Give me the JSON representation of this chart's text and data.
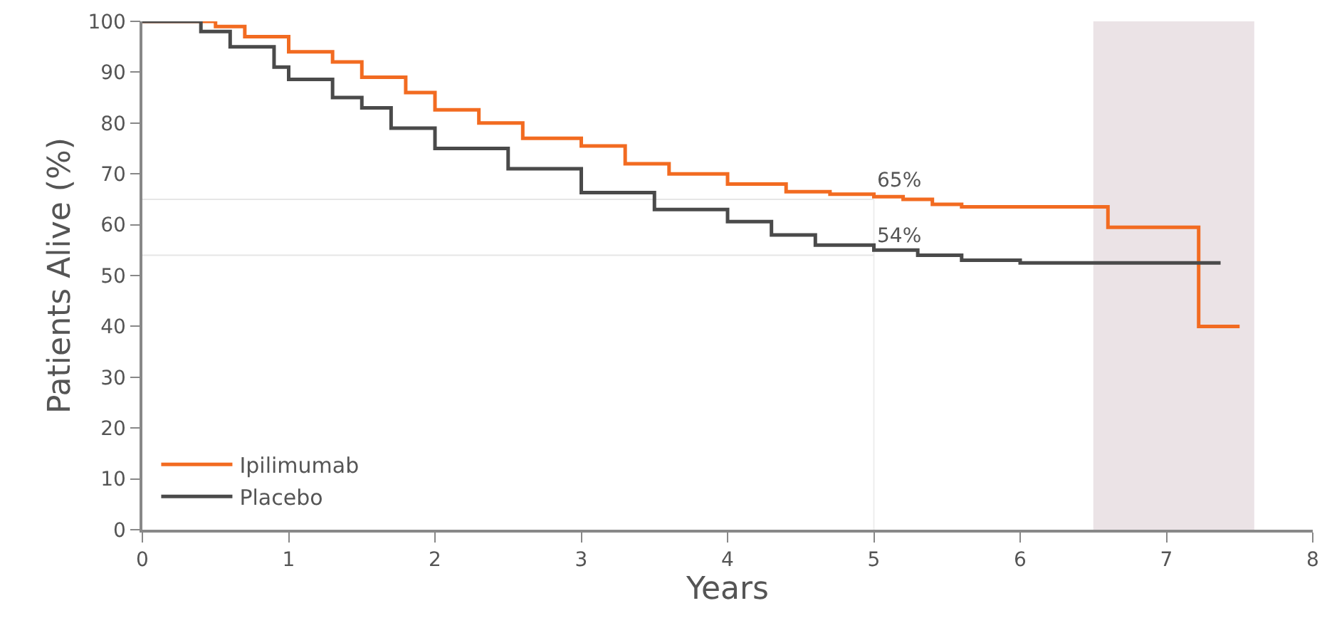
{
  "chart_data": {
    "type": "step",
    "xlabel": "Years",
    "ylabel": "Patients Alive (%)",
    "xlim": [
      0,
      8
    ],
    "xticks": [
      0,
      1,
      2,
      3,
      4,
      5,
      6,
      7,
      8
    ],
    "ylim": [
      0,
      100
    ],
    "yticks": [
      0,
      10,
      20,
      30,
      40,
      50,
      60,
      70,
      80,
      90,
      100
    ],
    "grid": false,
    "legend": "bottom left",
    "marker": "none",
    "line_style": "solid",
    "series": [
      {
        "name": "Ipilimumab",
        "color": "#f26b21",
        "x": [
          0,
          0.3,
          0.5,
          0.7,
          1,
          1.3,
          1.5,
          1.8,
          2,
          2.3,
          2.6,
          3,
          3.3,
          3.6,
          4,
          4.4,
          4.7,
          5,
          5.2,
          5.4,
          5.6,
          6.6,
          7.22,
          7.5
        ],
        "values": [
          100,
          100,
          99,
          97,
          94,
          92,
          89,
          86,
          82.6,
          80,
          77,
          75.5,
          72,
          70,
          68,
          66.5,
          66,
          65.5,
          65,
          64,
          63.5,
          59.5,
          40,
          40
        ]
      },
      {
        "name": "Placebo",
        "color": "#4a4a4a",
        "x": [
          0,
          0.4,
          0.6,
          0.9,
          1,
          1.3,
          1.5,
          1.7,
          2,
          2.5,
          3,
          3.5,
          4,
          4.3,
          4.6,
          5,
          5.3,
          5.6,
          6,
          7.37
        ],
        "values": [
          100,
          98,
          95,
          91,
          88.6,
          85,
          83,
          79,
          75,
          71,
          66.3,
          63,
          60.6,
          58,
          56,
          55,
          54,
          53,
          52.5,
          52.5
        ]
      }
    ],
    "ref_lines": [
      {
        "axis": "x",
        "value": 5,
        "color": "#eeeeee"
      },
      {
        "axis": "y",
        "value": 65,
        "label": "65%",
        "color": "#e6e6e6"
      },
      {
        "axis": "y",
        "value": 54,
        "label": "54%",
        "color": "#e6e6e6"
      }
    ],
    "bands": [
      {
        "axis": "x",
        "from": 6.5,
        "to": 7.6,
        "color": "#ebe3e6"
      }
    ]
  }
}
